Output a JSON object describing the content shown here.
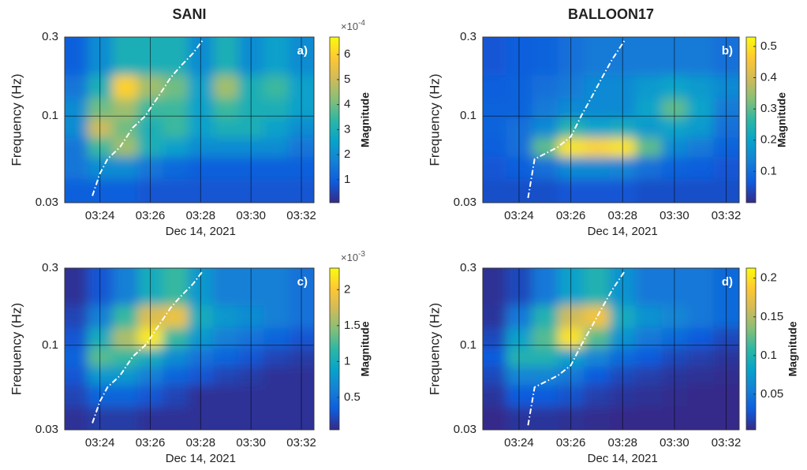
{
  "chart_data": [
    {
      "type": "heatmap",
      "title": "SANI",
      "panel_label": "a)",
      "ylabel": "Frequency (Hz)",
      "xlabel": "Dec 14, 2021",
      "colorbar_label": "Magnitude",
      "colorbar_scale": "×10",
      "colorbar_exponent": "-4",
      "colormap": "parula",
      "xlim": [
        22.6,
        32.5
      ],
      "xticks": [
        {
          "value": 24,
          "label": "03:24"
        },
        {
          "value": 26,
          "label": "03:26"
        },
        {
          "value": 28,
          "label": "03:28"
        },
        {
          "value": 30,
          "label": "03:30"
        },
        {
          "value": 32,
          "label": "03:32"
        }
      ],
      "ylim": [
        0.03,
        0.3
      ],
      "yticks": [
        0.03,
        0.1,
        0.3
      ],
      "log_y": true,
      "grid": true,
      "clim": [
        0.08,
        6.7
      ],
      "cticks": [
        1,
        2,
        3,
        4,
        5,
        6
      ],
      "x": [
        23,
        24,
        25,
        26,
        27,
        28,
        29,
        30,
        31,
        32
      ],
      "y": [
        0.035,
        0.05,
        0.065,
        0.085,
        0.11,
        0.15,
        0.21
      ],
      "z": [
        [
          1,
          1,
          1,
          0.8,
          0.8,
          0.8,
          0.8,
          0.8,
          0.8,
          0.8
        ],
        [
          1.5,
          2,
          2,
          1.5,
          1.2,
          1,
          1,
          1,
          1,
          1
        ],
        [
          1.5,
          3.5,
          4.5,
          3,
          2.5,
          2,
          2,
          2,
          2,
          1.5
        ],
        [
          2,
          5,
          4,
          3,
          3.5,
          2.5,
          3,
          3,
          2.5,
          2
        ],
        [
          2,
          4,
          4.5,
          3.5,
          3.5,
          2.5,
          3.5,
          3,
          3,
          2.5
        ],
        [
          1.5,
          3,
          6,
          4.5,
          4,
          2.5,
          4.5,
          3,
          3.5,
          2.5
        ],
        [
          1,
          2,
          3,
          3,
          3,
          2,
          3,
          2,
          2.5,
          2
        ]
      ],
      "curve": {
        "x": [
          23.7,
          24.0,
          24.3,
          24.8,
          25.3,
          25.8,
          26.3,
          26.8,
          27.2,
          27.7,
          28.1
        ],
        "y": [
          0.033,
          0.045,
          0.055,
          0.065,
          0.085,
          0.1,
          0.13,
          0.17,
          0.2,
          0.24,
          0.29
        ]
      }
    },
    {
      "type": "heatmap",
      "title": "BALLOON17",
      "panel_label": "b)",
      "ylabel": "Frequency (Hz)",
      "xlabel": "Dec 14, 2021",
      "colorbar_label": "Magnitude",
      "colormap": "parula",
      "xlim": [
        22.6,
        32.5
      ],
      "xticks": [
        {
          "value": 24,
          "label": "03:24"
        },
        {
          "value": 26,
          "label": "03:26"
        },
        {
          "value": 28,
          "label": "03:28"
        },
        {
          "value": 30,
          "label": "03:30"
        },
        {
          "value": 32,
          "label": "03:32"
        }
      ],
      "ylim": [
        0.03,
        0.3
      ],
      "yticks": [
        0.03,
        0.1,
        0.3
      ],
      "log_y": true,
      "grid": true,
      "clim": [
        0,
        0.53
      ],
      "cticks": [
        0.1,
        0.2,
        0.3,
        0.4,
        0.5
      ],
      "x": [
        23,
        24,
        25,
        26,
        27,
        28,
        29,
        30,
        31,
        32
      ],
      "y": [
        0.035,
        0.05,
        0.065,
        0.085,
        0.11,
        0.15,
        0.21
      ],
      "z": [
        [
          0.05,
          0.05,
          0.05,
          0.06,
          0.06,
          0.06,
          0.05,
          0.05,
          0.05,
          0.05
        ],
        [
          0.06,
          0.07,
          0.1,
          0.15,
          0.15,
          0.14,
          0.1,
          0.08,
          0.07,
          0.06
        ],
        [
          0.07,
          0.1,
          0.3,
          0.5,
          0.48,
          0.5,
          0.3,
          0.15,
          0.12,
          0.08
        ],
        [
          0.08,
          0.1,
          0.15,
          0.25,
          0.2,
          0.22,
          0.18,
          0.2,
          0.18,
          0.1
        ],
        [
          0.08,
          0.08,
          0.12,
          0.15,
          0.15,
          0.15,
          0.2,
          0.3,
          0.2,
          0.12
        ],
        [
          0.07,
          0.08,
          0.1,
          0.12,
          0.15,
          0.15,
          0.18,
          0.2,
          0.18,
          0.15
        ],
        [
          0.06,
          0.07,
          0.08,
          0.1,
          0.12,
          0.12,
          0.12,
          0.12,
          0.12,
          0.1
        ]
      ],
      "curve": {
        "x": [
          24.35,
          24.6,
          25.5,
          26.0,
          26.4,
          26.8,
          27.2,
          27.6,
          27.9,
          28.1
        ],
        "y": [
          0.032,
          0.055,
          0.065,
          0.075,
          0.1,
          0.13,
          0.17,
          0.22,
          0.26,
          0.29
        ]
      }
    },
    {
      "type": "heatmap",
      "panel_label": "c)",
      "ylabel": "Frequency (Hz)",
      "xlabel": "Dec 14, 2021",
      "colorbar_label": "Magnitude",
      "colorbar_scale": "×10",
      "colorbar_exponent": "-3",
      "colormap": "parula",
      "xlim": [
        22.6,
        32.5
      ],
      "xticks": [
        {
          "value": 24,
          "label": "03:24"
        },
        {
          "value": 26,
          "label": "03:26"
        },
        {
          "value": 28,
          "label": "03:28"
        },
        {
          "value": 30,
          "label": "03:30"
        },
        {
          "value": 32,
          "label": "03:32"
        }
      ],
      "ylim": [
        0.03,
        0.3
      ],
      "yticks": [
        0.03,
        0.1,
        0.3
      ],
      "log_y": true,
      "grid": true,
      "clim": [
        0.05,
        2.3
      ],
      "cticks": [
        0.5,
        1,
        1.5,
        2
      ],
      "x": [
        23,
        24,
        25,
        26,
        27,
        28,
        29,
        30,
        31,
        32
      ],
      "y": [
        0.035,
        0.05,
        0.065,
        0.085,
        0.11,
        0.15,
        0.21
      ],
      "z": [
        [
          0.1,
          0.15,
          0.15,
          0.1,
          0.1,
          0.1,
          0.1,
          0.1,
          0.1,
          0.1
        ],
        [
          0.2,
          0.4,
          0.4,
          0.3,
          0.2,
          0.1,
          0.1,
          0.1,
          0.1,
          0.1
        ],
        [
          0.3,
          0.8,
          0.8,
          0.6,
          0.4,
          0.3,
          0.2,
          0.15,
          0.1,
          0.1
        ],
        [
          0.4,
          1.3,
          1.2,
          1.0,
          0.7,
          0.5,
          0.4,
          0.3,
          0.2,
          0.15
        ],
        [
          0.3,
          1.0,
          1.6,
          2.2,
          1.2,
          0.8,
          0.6,
          0.5,
          0.4,
          0.3
        ],
        [
          0.2,
          0.6,
          1.2,
          1.8,
          1.9,
          1.0,
          0.8,
          0.7,
          0.6,
          0.5
        ],
        [
          0.1,
          0.3,
          0.6,
          1.0,
          1.2,
          0.8,
          0.6,
          0.6,
          0.6,
          0.5
        ]
      ],
      "curve": {
        "x": [
          23.7,
          24.0,
          24.3,
          24.8,
          25.3,
          25.8,
          26.3,
          26.8,
          27.2,
          27.7,
          28.1
        ],
        "y": [
          0.033,
          0.045,
          0.055,
          0.065,
          0.085,
          0.1,
          0.13,
          0.17,
          0.2,
          0.24,
          0.29
        ]
      }
    },
    {
      "type": "heatmap",
      "panel_label": "d)",
      "ylabel": "Frequency (Hz)",
      "xlabel": "Dec 14, 2021",
      "colorbar_label": "Magnitude",
      "colormap": "parula",
      "xlim": [
        22.6,
        32.5
      ],
      "xticks": [
        {
          "value": 24,
          "label": "03:24"
        },
        {
          "value": 26,
          "label": "03:26"
        },
        {
          "value": 28,
          "label": "03:28"
        },
        {
          "value": 30,
          "label": "03:30"
        },
        {
          "value": 32,
          "label": "03:32"
        }
      ],
      "ylim": [
        0.03,
        0.3
      ],
      "yticks": [
        0.03,
        0.1,
        0.3
      ],
      "log_y": true,
      "grid": true,
      "clim": [
        0.004,
        0.213
      ],
      "cticks": [
        0.05,
        0.1,
        0.15,
        0.2
      ],
      "x": [
        23,
        24,
        25,
        26,
        27,
        28,
        29,
        30,
        31,
        32
      ],
      "y": [
        0.035,
        0.05,
        0.065,
        0.085,
        0.11,
        0.15,
        0.21
      ],
      "z": [
        [
          0.005,
          0.01,
          0.01,
          0.008,
          0.006,
          0.005,
          0.005,
          0.005,
          0.005,
          0.005
        ],
        [
          0.01,
          0.03,
          0.03,
          0.025,
          0.015,
          0.01,
          0.008,
          0.006,
          0.005,
          0.005
        ],
        [
          0.02,
          0.06,
          0.06,
          0.05,
          0.03,
          0.02,
          0.015,
          0.01,
          0.008,
          0.006
        ],
        [
          0.03,
          0.1,
          0.1,
          0.08,
          0.06,
          0.04,
          0.03,
          0.02,
          0.015,
          0.01
        ],
        [
          0.02,
          0.08,
          0.12,
          0.2,
          0.12,
          0.07,
          0.05,
          0.04,
          0.03,
          0.02
        ],
        [
          0.01,
          0.05,
          0.1,
          0.16,
          0.18,
          0.09,
          0.07,
          0.06,
          0.05,
          0.04
        ],
        [
          0.008,
          0.02,
          0.05,
          0.08,
          0.1,
          0.07,
          0.05,
          0.05,
          0.05,
          0.04
        ]
      ],
      "curve": {
        "x": [
          24.35,
          24.6,
          25.5,
          26.0,
          26.4,
          26.8,
          27.2,
          27.6,
          27.9,
          28.1
        ],
        "y": [
          0.032,
          0.055,
          0.065,
          0.075,
          0.1,
          0.13,
          0.17,
          0.22,
          0.26,
          0.29
        ]
      }
    }
  ]
}
